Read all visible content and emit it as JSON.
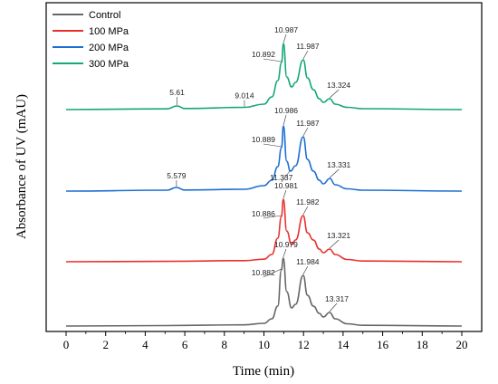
{
  "chart_data": {
    "type": "line",
    "xlabel": "Time (min)",
    "ylabel": "Absorbance of UV (mAU)",
    "xlim": [
      0,
      20
    ],
    "x_ticks": [
      0,
      2,
      4,
      6,
      8,
      10,
      12,
      14,
      16,
      18,
      20
    ],
    "y_ticks_shown": false,
    "grid": false,
    "legend_position": "top-left",
    "series": [
      {
        "name": "Control",
        "color": "#666666",
        "points": [
          [
            0,
            0.0
          ],
          [
            5,
            0.5
          ],
          [
            9,
            1.3
          ],
          [
            10,
            3.0
          ],
          [
            10.4,
            8
          ],
          [
            10.7,
            22
          ],
          [
            10.882,
            62
          ],
          [
            10.979,
            75
          ],
          [
            11.15,
            38
          ],
          [
            11.4,
            20
          ],
          [
            11.6,
            24
          ],
          [
            11.984,
            56
          ],
          [
            12.2,
            34
          ],
          [
            12.5,
            22
          ],
          [
            12.8,
            14
          ],
          [
            13.0,
            10
          ],
          [
            13.317,
            15
          ],
          [
            13.6,
            8
          ],
          [
            14.2,
            2.5
          ],
          [
            15,
            0.8
          ],
          [
            20,
            0.0
          ]
        ],
        "peaks": [
          {
            "x": 10.882,
            "label": "10.882"
          },
          {
            "x": 10.979,
            "label": "10.979"
          },
          {
            "x": 11.984,
            "label": "11.984"
          },
          {
            "x": 13.317,
            "label": "13.317"
          }
        ]
      },
      {
        "name": "100 MPa",
        "color": "#e8312f",
        "points": [
          [
            0,
            0.0
          ],
          [
            5,
            0.4
          ],
          [
            9,
            1.2
          ],
          [
            10,
            2.8
          ],
          [
            10.4,
            8
          ],
          [
            10.7,
            26
          ],
          [
            10.886,
            50
          ],
          [
            10.981,
            69
          ],
          [
            11.15,
            34
          ],
          [
            11.4,
            19
          ],
          [
            11.6,
            24
          ],
          [
            11.982,
            51
          ],
          [
            12.2,
            32
          ],
          [
            12.5,
            24
          ],
          [
            12.8,
            14
          ],
          [
            13.0,
            10
          ],
          [
            13.321,
            14
          ],
          [
            13.6,
            8
          ],
          [
            14.2,
            2.5
          ],
          [
            15,
            0.8
          ],
          [
            20,
            0.0
          ]
        ],
        "peaks": [
          {
            "x": 10.886,
            "label": "10.886"
          },
          {
            "x": 10.981,
            "label": "10.981"
          },
          {
            "x": 11.982,
            "label": "11.982"
          },
          {
            "x": 13.321,
            "label": "13.321"
          }
        ]
      },
      {
        "name": "200 MPa",
        "color": "#1c6fd1",
        "points": [
          [
            0,
            0.0
          ],
          [
            5.1,
            1.0
          ],
          [
            5.579,
            4
          ],
          [
            6.0,
            1.2
          ],
          [
            9,
            2.0
          ],
          [
            10,
            6
          ],
          [
            10.4,
            12
          ],
          [
            10.7,
            27
          ],
          [
            10.889,
            48
          ],
          [
            10.986,
            72
          ],
          [
            11.15,
            33
          ],
          [
            11.337,
            22
          ],
          [
            11.6,
            28
          ],
          [
            11.987,
            60
          ],
          [
            12.2,
            35
          ],
          [
            12.5,
            22
          ],
          [
            12.8,
            12
          ],
          [
            13.0,
            8
          ],
          [
            13.331,
            14
          ],
          [
            13.6,
            7
          ],
          [
            14.2,
            2.5
          ],
          [
            15,
            1.0
          ],
          [
            20,
            0.0
          ]
        ],
        "peaks": [
          {
            "x": 5.579,
            "label": "5.579"
          },
          {
            "x": 10.889,
            "label": "10.889"
          },
          {
            "x": 10.986,
            "label": "10.986"
          },
          {
            "x": 11.337,
            "label": "11.337"
          },
          {
            "x": 11.987,
            "label": "11.987"
          },
          {
            "x": 13.331,
            "label": "13.331"
          }
        ]
      },
      {
        "name": "300 MPa",
        "color": "#14a873",
        "points": [
          [
            0,
            0.0
          ],
          [
            5.1,
            0.8
          ],
          [
            5.61,
            4
          ],
          [
            6.0,
            1.2
          ],
          [
            9.014,
            2.5
          ],
          [
            10,
            6
          ],
          [
            10.4,
            14
          ],
          [
            10.7,
            32
          ],
          [
            10.892,
            52
          ],
          [
            10.987,
            73
          ],
          [
            11.15,
            36
          ],
          [
            11.4,
            25
          ],
          [
            11.6,
            30
          ],
          [
            11.987,
            55
          ],
          [
            12.2,
            35
          ],
          [
            12.5,
            22
          ],
          [
            12.8,
            12
          ],
          [
            13.0,
            8
          ],
          [
            13.324,
            12
          ],
          [
            13.6,
            6
          ],
          [
            14.2,
            2.5
          ],
          [
            15,
            1.0
          ],
          [
            20,
            0.0
          ]
        ],
        "peaks": [
          {
            "x": 5.61,
            "label": "5.61"
          },
          {
            "x": 9.014,
            "label": "9.014"
          },
          {
            "x": 10.892,
            "label": "10.892"
          },
          {
            "x": 10.987,
            "label": "10.987"
          },
          {
            "x": 11.987,
            "label": "11.987"
          },
          {
            "x": 13.324,
            "label": "13.324"
          }
        ]
      }
    ]
  }
}
